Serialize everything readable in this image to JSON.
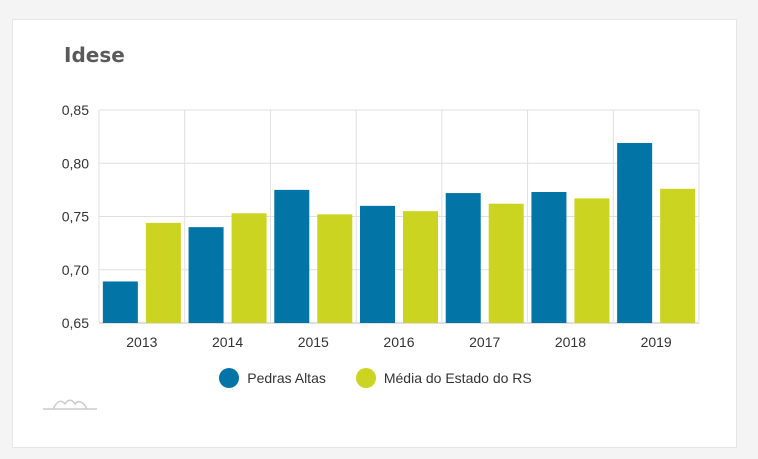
{
  "card": {
    "title": "Idese"
  },
  "colors": {
    "series1": "#0275a6",
    "series2": "#cbd420",
    "grid": "#e0e0e0",
    "axis": "#bfbfbf"
  },
  "chart_data": {
    "type": "bar",
    "title": "Idese",
    "xlabel": "",
    "ylabel": "",
    "categories": [
      "2013",
      "2014",
      "2015",
      "2016",
      "2017",
      "2018",
      "2019"
    ],
    "series": [
      {
        "name": "Pedras Altas",
        "values": [
          0.689,
          0.74,
          0.775,
          0.76,
          0.772,
          0.773,
          0.819
        ]
      },
      {
        "name": "Média do Estado do RS",
        "values": [
          0.744,
          0.753,
          0.752,
          0.755,
          0.762,
          0.767,
          0.776
        ]
      }
    ],
    "ylim": [
      0.65,
      0.85
    ],
    "yticks": [
      "0,65",
      "0,70",
      "0,75",
      "0,80",
      "0,85"
    ],
    "grid": true,
    "legend_position": "bottom-center"
  },
  "logo_icon": "mountain-logo-icon"
}
